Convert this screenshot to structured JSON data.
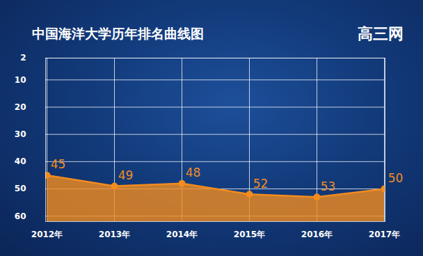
{
  "chart_data": {
    "type": "line",
    "title": "中国海洋大学历年排名曲线图",
    "annotations": [
      "高三网"
    ],
    "categories": [
      "2012年",
      "2013年",
      "2014年",
      "2015年",
      "2016年",
      "2017年"
    ],
    "values": [
      45,
      49,
      48,
      52,
      53,
      50
    ],
    "color": "#f28c1e",
    "ylim": [
      62,
      2
    ],
    "yticks": [
      2,
      10,
      20,
      30,
      40,
      50,
      60
    ],
    "grid": true,
    "data_labels": true,
    "marker": "circle"
  }
}
